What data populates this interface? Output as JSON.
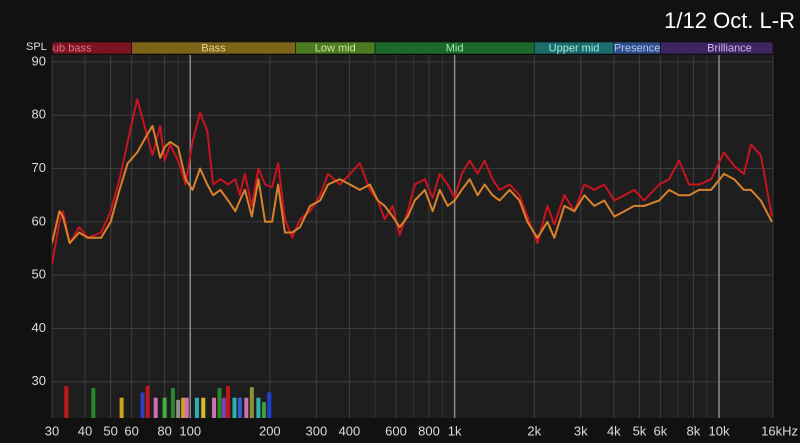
{
  "chart_data": {
    "type": "line",
    "title": "1/12 Oct. L-R",
    "ylabel": "SPL",
    "log_x": true,
    "grid": true,
    "xlim": [
      30,
      16000
    ],
    "ylim": [
      23.2,
      91.3
    ],
    "xticks": [
      30,
      40,
      50,
      60,
      80,
      100,
      200,
      300,
      400,
      600,
      800,
      {
        "value": 1000,
        "label": "1k"
      },
      {
        "value": 2000,
        "label": "2k"
      },
      {
        "value": 3000,
        "label": "3k"
      },
      {
        "value": 4000,
        "label": "4k"
      },
      {
        "value": 5000,
        "label": "5k"
      },
      {
        "value": 6000,
        "label": "6k"
      },
      {
        "value": 8000,
        "label": "8k"
      },
      {
        "value": 10000,
        "label": "10k"
      },
      {
        "value": 16000,
        "label": "16kHz"
      }
    ],
    "yticks": [
      30,
      40,
      50,
      60,
      70,
      80,
      90
    ],
    "bands": [
      {
        "label": "Sub bass",
        "from": 20,
        "to": 60,
        "color": "#7a1420",
        "text_color": "#e07080"
      },
      {
        "label": "Bass",
        "from": 60,
        "to": 250,
        "color": "#7d6418",
        "text_color": "#e8d08a"
      },
      {
        "label": "Low mid",
        "from": 250,
        "to": 500,
        "color": "#4f7a22",
        "text_color": "#c8e8a0"
      },
      {
        "label": "Mid",
        "from": 500,
        "to": 2000,
        "color": "#1b6a2c",
        "text_color": "#a8e8b0"
      },
      {
        "label": "Upper mid",
        "from": 2000,
        "to": 4000,
        "color": "#1c6c6c",
        "text_color": "#a8e8e8"
      },
      {
        "label": "Presence",
        "from": 4000,
        "to": 6000,
        "color": "#2e4f88",
        "text_color": "#b0c8f0"
      },
      {
        "label": "Brilliance",
        "from": 6000,
        "to": 20000,
        "color": "#3c2560",
        "text_color": "#d0b8f0"
      }
    ],
    "x": [
      30,
      32,
      33,
      35,
      38,
      41,
      46,
      50,
      54,
      58,
      63,
      68,
      72,
      77,
      80,
      84,
      90,
      96,
      102,
      109,
      116,
      122,
      130,
      139,
      148,
      154,
      161,
      171,
      181,
      192,
      204,
      215,
      228,
      243,
      260,
      284,
      310,
      332,
      368,
      402,
      438,
      478,
      512,
      544,
      583,
      620,
      665,
      706,
      771,
      826,
      878,
      941,
      1000,
      1063,
      1140,
      1221,
      1298,
      1391,
      1479,
      1614,
      1759,
      1884,
      2056,
      2243,
      2383,
      2600,
      2837,
      3096,
      3375,
      3683,
      4018,
      4385,
      4778,
      5213,
      5941,
      6475,
      7063,
      7706,
      8407,
      9333,
      10446,
      11403,
      12415,
      13206,
      14388,
      15849
    ],
    "series": [
      {
        "color": "#c8141e",
        "values": [
          52,
          60,
          62,
          56,
          59,
          57,
          58,
          62,
          68,
          75,
          83,
          77,
          72.5,
          78,
          71.5,
          74.5,
          71.5,
          67,
          75,
          80.5,
          77,
          67,
          68,
          67,
          68,
          65,
          69,
          63,
          70,
          67,
          66.5,
          71,
          60.5,
          57,
          60.5,
          62,
          65,
          69,
          67,
          69,
          71,
          66,
          64,
          60.5,
          63,
          57.5,
          62,
          67,
          68,
          64.5,
          69,
          67,
          64.5,
          69,
          71.5,
          69,
          71.5,
          68,
          66,
          67,
          65,
          61,
          56,
          63,
          59.5,
          65,
          62,
          67,
          66,
          67,
          64,
          65,
          66,
          64,
          67,
          68,
          71.5,
          67,
          67,
          68,
          73,
          70.5,
          69,
          74.5,
          72.5,
          61
        ]
      },
      {
        "color": "#d9822b",
        "values": [
          56,
          62,
          61,
          56,
          58,
          57,
          57,
          60,
          66,
          71,
          73,
          76,
          78,
          72,
          74,
          75,
          74,
          68,
          66,
          70,
          67,
          65,
          66,
          64,
          62,
          64,
          66,
          61,
          68,
          60,
          60,
          67,
          58,
          58,
          59,
          63,
          64,
          67,
          68,
          67,
          66,
          67,
          64,
          63,
          61,
          59,
          61,
          64,
          66,
          62,
          66,
          63,
          64,
          66,
          68,
          65,
          67,
          65,
          64,
          66,
          64,
          60,
          57,
          60,
          57,
          63,
          62,
          65,
          63,
          64,
          61,
          62,
          63,
          63,
          64,
          66,
          65,
          65,
          66,
          66,
          69,
          68,
          66,
          66,
          64,
          60
        ]
      }
    ],
    "markers": {
      "x": [
        34,
        43,
        55,
        66,
        69,
        74,
        80,
        86,
        90,
        94,
        97,
        106,
        112,
        123,
        129,
        134,
        139,
        147,
        154,
        163,
        171,
        181,
        190,
        199
      ],
      "values": [
        29.2,
        28.8,
        27,
        28,
        29.2,
        27,
        27,
        28.8,
        26.6,
        27,
        27,
        27,
        27,
        27,
        28.8,
        27,
        29.2,
        27,
        27,
        27,
        29,
        27,
        26.2,
        28
      ],
      "colors": [
        "#c01818",
        "#2a8a2a",
        "#d0a020",
        "#3040c0",
        "#c01818",
        "#d070b0",
        "#40b040",
        "#2a8a2a",
        "#909090",
        "#d0a020",
        "#d070b0",
        "#30b0b0",
        "#d0c030",
        "#d070b0",
        "#2a8a2a",
        "#8040c0",
        "#c01818",
        "#30b0b0",
        "#3060d0",
        "#d070b0",
        "#909030",
        "#30b0b0",
        "#40a040",
        "#2040d0"
      ]
    }
  }
}
